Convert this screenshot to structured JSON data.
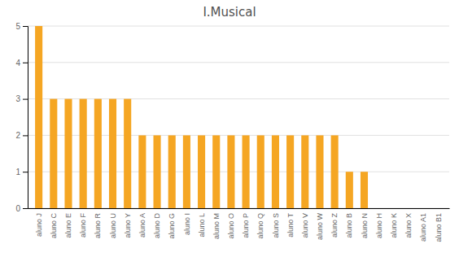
{
  "chart_data": {
    "type": "bar",
    "title": "I.Musical",
    "categories": [
      "aluno J",
      "aluno C",
      "aluno E",
      "aluno F",
      "aluno R",
      "aluno U",
      "aluno Y",
      "aluno A",
      "aluno D",
      "aluno G",
      "aluno I",
      "aluno L",
      "aluno M",
      "aluno O",
      "aluno P",
      "aluno Q",
      "aluno S",
      "aluno T",
      "aluno V",
      "aluno W",
      "aluno Z",
      "aluno B",
      "aluno N",
      "aluno H",
      "aluno K",
      "aluno X",
      "aluno A1",
      "aluno B1"
    ],
    "values": [
      5,
      3,
      3,
      3,
      3,
      3,
      3,
      2,
      2,
      2,
      2,
      2,
      2,
      2,
      2,
      2,
      2,
      2,
      2,
      2,
      2,
      1,
      1,
      0,
      0,
      0,
      0,
      0
    ],
    "color": "#F5A623",
    "ylim": [
      0,
      5
    ],
    "yticks": [
      0,
      1,
      2,
      3,
      4,
      5
    ],
    "grid": true
  }
}
